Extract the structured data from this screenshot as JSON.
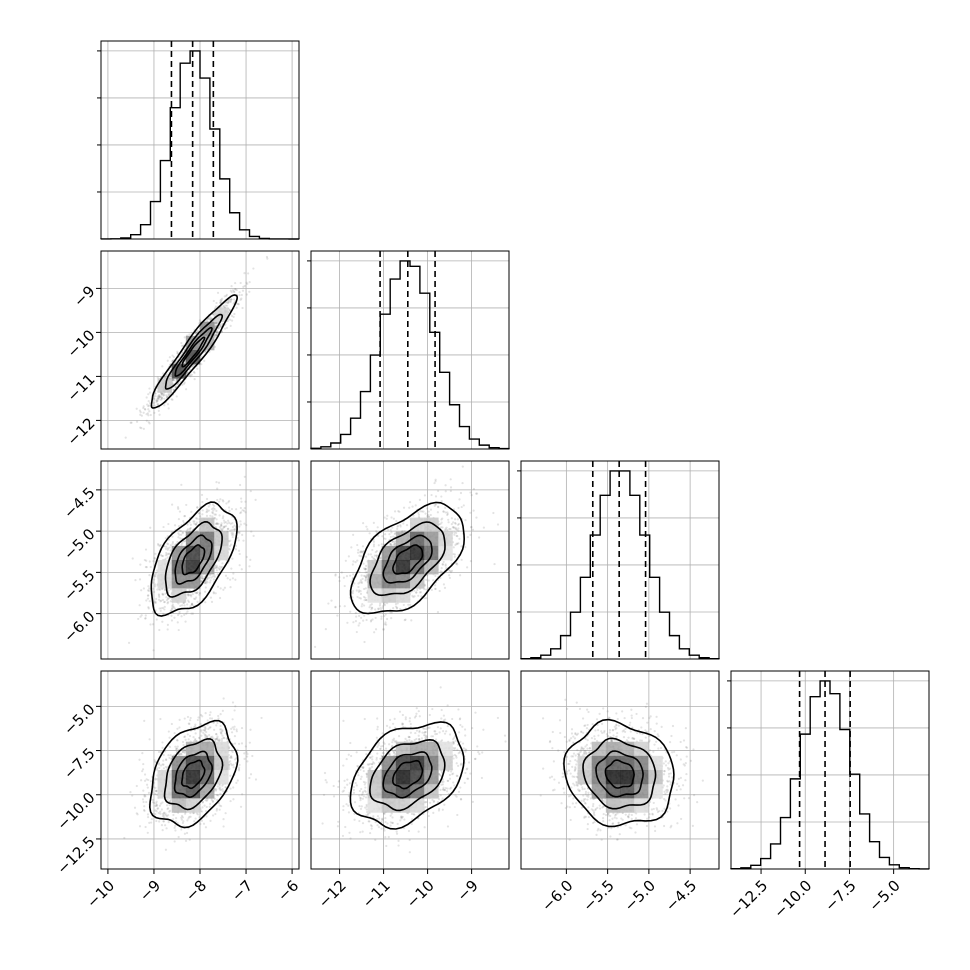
{
  "chart_data": {
    "type": "corner",
    "parameters": [
      "",
      "",
      "",
      ""
    ],
    "ranges": [
      [
        -10.15,
        -5.85
      ],
      [
        -12.65,
        -8.15
      ],
      [
        -6.55,
        -4.15
      ],
      [
        -14.2,
        -3.0
      ]
    ],
    "ticks": [
      [
        "−10",
        "−9",
        "−8",
        "−7",
        "−6"
      ],
      [
        "−12",
        "−11",
        "−10",
        "−9"
      ],
      [
        "−6.0",
        "−5.5",
        "−5.0",
        "−4.5"
      ],
      [
        "−12.5",
        "−10.0",
        "−7.5",
        "−5.0"
      ]
    ],
    "tick_values": [
      [
        -10,
        -9,
        -8,
        -7,
        -6
      ],
      [
        -12,
        -11,
        -10,
        -9
      ],
      [
        -6.0,
        -5.5,
        -5.0,
        -4.5
      ],
      [
        -12.5,
        -10.0,
        -7.5,
        -5.0
      ]
    ],
    "means": [
      -8.15,
      -10.45,
      -5.35,
      -8.85
    ],
    "sigmas": [
      0.45,
      0.62,
      0.32,
      1.4
    ],
    "quantiles": {
      "q16": [
        -8.62,
        -11.08,
        -5.68,
        -10.32
      ],
      "q50": [
        -8.16,
        -10.45,
        -5.36,
        -8.88
      ],
      "q84": [
        -7.71,
        -9.83,
        -5.04,
        -7.46
      ]
    },
    "correlations": [
      [
        1,
        0.95,
        0.55,
        0.35
      ],
      [
        0.95,
        1,
        0.55,
        0.35
      ],
      [
        0.55,
        0.55,
        1,
        -0.1
      ],
      [
        0.35,
        0.35,
        -0.1,
        1
      ]
    ],
    "histogram_peak_fraction": 0.95,
    "contour_levels_sigma": [
      0.5,
      1.0,
      1.5,
      2.0
    ],
    "grid": true,
    "colors": {
      "line": "#000000",
      "grid": "#b0b0b0",
      "scatter": "#7f7f7f"
    }
  }
}
